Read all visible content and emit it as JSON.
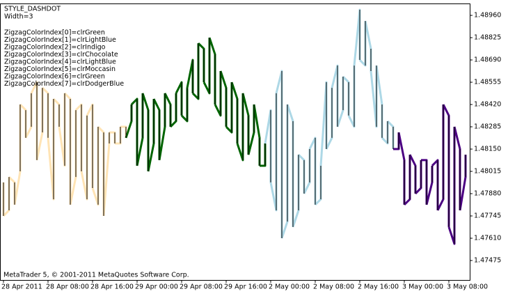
{
  "chart_data": {
    "type": "zigzag",
    "annotations": [
      "STYLE_DASHDOT",
      "Width=3"
    ],
    "palette": [
      {
        "label": "ZigzagColorIndex[0]=clrGreen",
        "color": "#006400"
      },
      {
        "label": "ZigzagColorIndex[1]=clrLightBlue",
        "color": "#ADD8E6"
      },
      {
        "label": "ZigzagColorIndex[2]=clrIndigo",
        "color": "#4B0082"
      },
      {
        "label": "ZigzagColorIndex[3]=clrChocolate",
        "color": "#D2691E"
      },
      {
        "label": "ZigzagColorIndex[4]=clrLightBlue",
        "color": "#ADD8E6"
      },
      {
        "label": "ZigzagColorIndex[5]=clrMoccasin",
        "color": "#FFE4B5"
      },
      {
        "label": "ZigzagColorIndex[6]=clrGreen",
        "color": "#008000"
      },
      {
        "label": "ZigzagColorIndex[7]=clrDodgerBlue",
        "color": "#1E90FF"
      }
    ],
    "footer": "MetaTrader 5, © 2001-2011 MetaQuotes Software Corp.",
    "categories": [
      "28 Apr 2011",
      null,
      null,
      null,
      null,
      null,
      null,
      null,
      "28 Apr 08:00",
      null,
      null,
      null,
      null,
      null,
      null,
      null,
      "28 Apr 16:00",
      null,
      null,
      null,
      null,
      null,
      null,
      null,
      "29 Apr 00:00",
      null,
      null,
      null,
      null,
      null,
      null,
      null,
      "29 Apr 08:00",
      null,
      null,
      null,
      null,
      null,
      null,
      null,
      "29 Apr 16:00",
      null,
      null,
      null,
      null,
      null,
      null,
      null,
      "2 May 00:00",
      null,
      null,
      null,
      null,
      null,
      null,
      null,
      "2 May 08:00",
      null,
      null,
      null,
      null,
      null,
      null,
      null,
      "2 May 16:00",
      null,
      null,
      null,
      null,
      null,
      null,
      null,
      "3 May 00:00",
      null,
      null,
      null,
      null,
      null,
      null,
      null,
      "3 May 08:00",
      null,
      null,
      null
    ],
    "high": [
      1.47948,
      1.47981,
      1.47948,
      1.4842,
      1.48386,
      1.48488,
      1.48555,
      1.48521,
      1.48488,
      1.48454,
      1.4842,
      1.48488,
      1.48454,
      1.48386,
      1.4842,
      1.48353,
      1.4842,
      1.48285,
      1.48251,
      1.48251,
      1.48251,
      1.48285,
      1.48285,
      1.4842,
      1.48454,
      1.48488,
      1.48386,
      1.48454,
      1.48386,
      1.48488,
      1.4842,
      1.48488,
      1.48555,
      1.48521,
      1.4869,
      1.48791,
      1.48758,
      1.48825,
      1.48724,
      1.48623,
      1.48521,
      1.48555,
      1.48454,
      1.48488,
      1.48353,
      1.4842,
      1.48218,
      1.48184,
      1.48386,
      1.48488,
      1.48623,
      1.4842,
      1.48319,
      1.48116,
      1.48083,
      1.4815,
      1.48218,
      1.48049,
      1.48555,
      1.48521,
      1.48656,
      1.48589,
      1.48555,
      1.48656,
      1.48994,
      1.48926,
      1.48758,
      1.48656,
      1.4842,
      1.48319,
      1.48285,
      1.48251,
      1.48083,
      1.48116,
      1.48049,
      1.48083,
      1.48083,
      1.48049,
      1.48083,
      1.4842,
      1.48353,
      1.48285,
      1.4815,
      1.48116
    ],
    "low": [
      1.47745,
      1.47779,
      1.47813,
      1.48015,
      1.48218,
      1.48285,
      1.48083,
      1.48251,
      1.48218,
      1.47846,
      1.48285,
      1.48049,
      1.47813,
      1.47981,
      1.48015,
      1.47846,
      1.47914,
      1.47813,
      1.47745,
      1.48184,
      1.48184,
      1.48184,
      1.48218,
      1.48319,
      1.48049,
      1.48218,
      1.48015,
      1.48184,
      1.48083,
      1.48285,
      1.48285,
      1.48319,
      1.48353,
      1.48319,
      1.48488,
      1.48454,
      1.48555,
      1.48488,
      1.4842,
      1.48353,
      1.48285,
      1.48251,
      1.48184,
      1.48083,
      1.48116,
      1.48251,
      1.48049,
      1.48049,
      1.47948,
      1.47779,
      1.4761,
      1.47711,
      1.47678,
      1.47779,
      1.4788,
      1.47948,
      1.47813,
      1.47846,
      1.4815,
      1.48218,
      1.48285,
      1.48386,
      1.48353,
      1.48285,
      1.4869,
      1.48656,
      1.48623,
      1.48285,
      1.48218,
      1.48184,
      1.4815,
      1.4815,
      1.47813,
      1.47846,
      1.4788,
      1.47914,
      1.47813,
      1.47948,
      1.47779,
      1.47846,
      1.47678,
      1.47576,
      1.47779,
      1.47981
    ],
    "color_index": [
      5,
      5,
      5,
      5,
      5,
      5,
      5,
      5,
      5,
      5,
      5,
      5,
      5,
      5,
      5,
      5,
      5,
      5,
      5,
      5,
      5,
      5,
      5,
      0,
      0,
      0,
      0,
      0,
      0,
      0,
      0,
      0,
      0,
      0,
      0,
      0,
      0,
      0,
      0,
      0,
      0,
      0,
      0,
      0,
      0,
      0,
      0,
      0,
      1,
      1,
      1,
      1,
      1,
      1,
      1,
      1,
      1,
      1,
      1,
      1,
      1,
      1,
      1,
      1,
      1,
      1,
      1,
      1,
      1,
      1,
      1,
      2,
      2,
      2,
      2,
      2,
      2,
      2,
      2,
      2,
      2,
      2,
      2,
      2
    ],
    "bar_color": "#000000",
    "ylim": [
      1.47357,
      1.49032
    ],
    "yticks": [
      {
        "value": 1.4896,
        "label": "1.48960"
      },
      {
        "value": 1.48825,
        "label": "1.48825"
      },
      {
        "value": 1.4869,
        "label": "1.48690"
      },
      {
        "value": 1.48555,
        "label": "1.48555"
      },
      {
        "value": 1.4842,
        "label": "1.48420"
      },
      {
        "value": 1.48285,
        "label": "1.48285"
      },
      {
        "value": 1.4815,
        "label": "1.48150"
      },
      {
        "value": 1.48015,
        "label": "1.48015"
      },
      {
        "value": 1.4788,
        "label": "1.47880"
      },
      {
        "value": 1.47745,
        "label": "1.47745"
      },
      {
        "value": 1.4761,
        "label": "1.47610"
      },
      {
        "value": 1.47475,
        "label": "1.47475"
      }
    ]
  }
}
